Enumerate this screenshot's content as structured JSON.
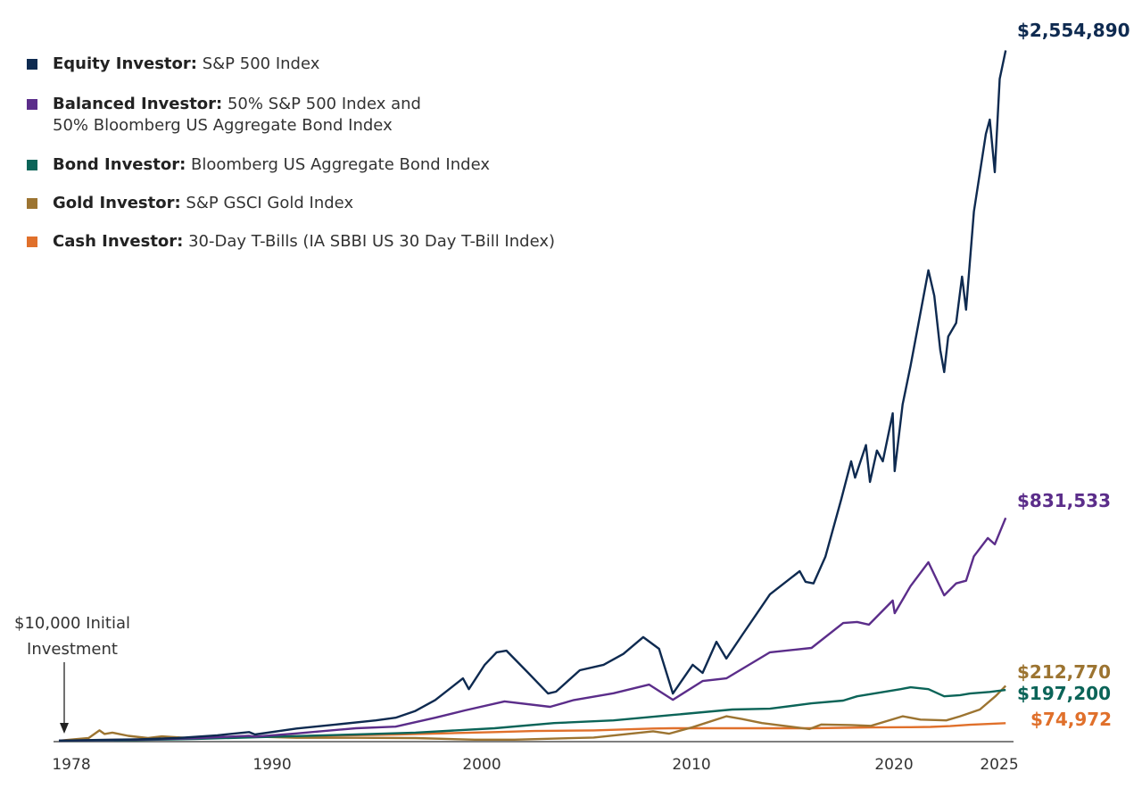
{
  "chart_data": {
    "type": "line",
    "xlim": [
      1978,
      2025.8
    ],
    "ylim": [
      0,
      2560000
    ],
    "grid": false,
    "legend_position": "top-left",
    "x_ticks": [
      "1978",
      "1990",
      "2000",
      "2010",
      "2020",
      "2025"
    ],
    "annotation": {
      "line1": "$10,000 Initial",
      "line2": "Investment"
    },
    "series": [
      {
        "name": "Equity Investor:",
        "desc": "S&P 500 Index",
        "color": "#0e2a50",
        "end_label": "$2,554,890",
        "points": [
          [
            1978,
            10000
          ],
          [
            1980,
            13000
          ],
          [
            1982,
            15000
          ],
          [
            1984,
            20000
          ],
          [
            1986,
            30000
          ],
          [
            1987.6,
            42000
          ],
          [
            1987.9,
            33000
          ],
          [
            1990,
            55000
          ],
          [
            1992,
            70000
          ],
          [
            1994,
            85000
          ],
          [
            1995,
            95000
          ],
          [
            1996,
            120000
          ],
          [
            1997,
            160000
          ],
          [
            1998.4,
            240000
          ],
          [
            1998.7,
            200000
          ],
          [
            1999.5,
            290000
          ],
          [
            2000.1,
            336000
          ],
          [
            2000.6,
            342000
          ],
          [
            2001.7,
            260000
          ],
          [
            2002.7,
            184000
          ],
          [
            2003.1,
            191000
          ],
          [
            2004.3,
            270000
          ],
          [
            2005.5,
            290000
          ],
          [
            2006.5,
            330000
          ],
          [
            2007.5,
            392000
          ],
          [
            2008.3,
            349000
          ],
          [
            2009.0,
            184000
          ],
          [
            2010.0,
            290000
          ],
          [
            2010.5,
            260000
          ],
          [
            2011.2,
            375000
          ],
          [
            2011.7,
            313000
          ],
          [
            2012.5,
            400000
          ],
          [
            2013.9,
            550000
          ],
          [
            2015.4,
            635000
          ],
          [
            2015.7,
            596000
          ],
          [
            2016.1,
            590000
          ],
          [
            2016.7,
            688000
          ],
          [
            2017.5,
            900000
          ],
          [
            2018.0,
            1040000
          ],
          [
            2018.2,
            980000
          ],
          [
            2018.75,
            1100000
          ],
          [
            2018.95,
            964000
          ],
          [
            2019.3,
            1080000
          ],
          [
            2019.6,
            1040000
          ],
          [
            2020.1,
            1217000
          ],
          [
            2020.2,
            1004000
          ],
          [
            2020.6,
            1250000
          ],
          [
            2021.0,
            1392000
          ],
          [
            2021.9,
            1744000
          ],
          [
            2022.2,
            1650000
          ],
          [
            2022.5,
            1450000
          ],
          [
            2022.7,
            1369000
          ],
          [
            2022.9,
            1500000
          ],
          [
            2023.3,
            1550000
          ],
          [
            2023.6,
            1721000
          ],
          [
            2023.8,
            1599000
          ],
          [
            2024.2,
            1961000
          ],
          [
            2024.8,
            2247000
          ],
          [
            2025.0,
            2300000
          ],
          [
            2025.25,
            2106000
          ],
          [
            2025.5,
            2450000
          ],
          [
            2025.8,
            2554890
          ]
        ]
      },
      {
        "name": "Balanced Investor:",
        "desc": "50% S&P 500 Index and",
        "desc2": "50% Bloomberg US Aggregate Bond Index",
        "color": "#5b2d8a",
        "end_label": "$831,533",
        "points": [
          [
            1978,
            10000
          ],
          [
            1982,
            14000
          ],
          [
            1985,
            20000
          ],
          [
            1987.6,
            28000
          ],
          [
            1987.9,
            25000
          ],
          [
            1990,
            37000
          ],
          [
            1993,
            56000
          ],
          [
            1995,
            62000
          ],
          [
            1997,
            95000
          ],
          [
            1998.5,
            122000
          ],
          [
            2000.5,
            155000
          ],
          [
            2002.8,
            135000
          ],
          [
            2004,
            160000
          ],
          [
            2006,
            185000
          ],
          [
            2007.8,
            217000
          ],
          [
            2009.0,
            161000
          ],
          [
            2010.5,
            230000
          ],
          [
            2011.7,
            240000
          ],
          [
            2013.9,
            336000
          ],
          [
            2016.0,
            352000
          ],
          [
            2017.6,
            444000
          ],
          [
            2018.3,
            448000
          ],
          [
            2018.9,
            438000
          ],
          [
            2020.1,
            527000
          ],
          [
            2020.2,
            480000
          ],
          [
            2021.0,
            580000
          ],
          [
            2021.9,
            668000
          ],
          [
            2022.7,
            546000
          ],
          [
            2023.3,
            590000
          ],
          [
            2023.8,
            600000
          ],
          [
            2024.2,
            690000
          ],
          [
            2024.9,
            757000
          ],
          [
            2025.25,
            734000
          ],
          [
            2025.8,
            831533
          ]
        ]
      },
      {
        "name": "Bond Investor:",
        "desc": "Bloomberg US Aggregate Bond Index",
        "color": "#0b6458",
        "end_label": "$197,200",
        "points": [
          [
            1978,
            10000
          ],
          [
            1981,
            11000
          ],
          [
            1985,
            17000
          ],
          [
            1990,
            27000
          ],
          [
            1993,
            33000
          ],
          [
            1996,
            40000
          ],
          [
            2000,
            56000
          ],
          [
            2003,
            75000
          ],
          [
            2006,
            85000
          ],
          [
            2009,
            105000
          ],
          [
            2012,
            125000
          ],
          [
            2013.9,
            128000
          ],
          [
            2016,
            148000
          ],
          [
            2017.6,
            158000
          ],
          [
            2018.3,
            174000
          ],
          [
            2020.5,
            200000
          ],
          [
            2021,
            207000
          ],
          [
            2021.9,
            200000
          ],
          [
            2022.7,
            174000
          ],
          [
            2023.5,
            178000
          ],
          [
            2024,
            184000
          ],
          [
            2025,
            190000
          ],
          [
            2025.8,
            197200
          ]
        ]
      },
      {
        "name": "Gold Investor:",
        "desc": "S&P GSCI Gold Index",
        "color": "#9c7431",
        "end_label": "$212,770",
        "points": [
          [
            1978,
            10000
          ],
          [
            1979.5,
            20000
          ],
          [
            1980.05,
            48000
          ],
          [
            1980.3,
            35000
          ],
          [
            1980.7,
            40000
          ],
          [
            1981.5,
            28000
          ],
          [
            1982.5,
            20000
          ],
          [
            1983.2,
            26000
          ],
          [
            1985,
            18000
          ],
          [
            1987.9,
            25000
          ],
          [
            1990,
            21000
          ],
          [
            1993,
            21000
          ],
          [
            1996,
            20000
          ],
          [
            1999,
            14000
          ],
          [
            2001,
            14000
          ],
          [
            2005,
            22000
          ],
          [
            2008,
            45000
          ],
          [
            2008.8,
            36000
          ],
          [
            2010,
            60000
          ],
          [
            2011.7,
            100000
          ],
          [
            2012.5,
            90000
          ],
          [
            2013.5,
            75000
          ],
          [
            2015.9,
            53000
          ],
          [
            2016.5,
            70000
          ],
          [
            2018,
            68000
          ],
          [
            2019,
            65000
          ],
          [
            2020.6,
            100000
          ],
          [
            2021.5,
            88000
          ],
          [
            2022.8,
            85000
          ],
          [
            2023.5,
            100000
          ],
          [
            2024.5,
            125000
          ],
          [
            2025.3,
            175000
          ],
          [
            2025.8,
            212770
          ]
        ]
      },
      {
        "name": "Cash Investor:",
        "desc": "30-Day T-Bills (IA SBBI US 30 Day T-Bill Index)",
        "color": "#e0702b",
        "end_label": "$74,972",
        "points": [
          [
            1978,
            10000
          ],
          [
            1981,
            13500
          ],
          [
            1985,
            19000
          ],
          [
            1990,
            27000
          ],
          [
            1995,
            33000
          ],
          [
            2000,
            42000
          ],
          [
            2002,
            46000
          ],
          [
            2005,
            48000
          ],
          [
            2008,
            55000
          ],
          [
            2009,
            56000
          ],
          [
            2016,
            56000
          ],
          [
            2019,
            59000
          ],
          [
            2021,
            60000
          ],
          [
            2022,
            61000
          ],
          [
            2023,
            64000
          ],
          [
            2024,
            69000
          ],
          [
            2025.8,
            74972
          ]
        ]
      }
    ]
  }
}
